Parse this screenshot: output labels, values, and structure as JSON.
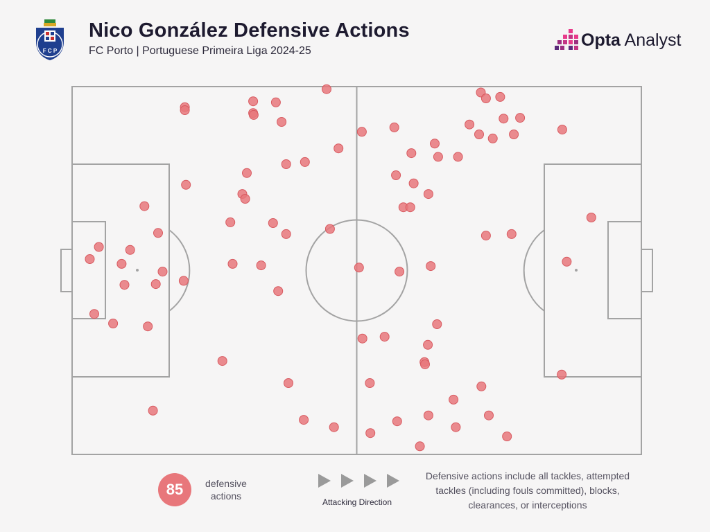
{
  "header": {
    "title": "Nico González Defensive Actions",
    "subtitle": "FC Porto | Portuguese Primeira Liga 2024-25",
    "crest_letters": "F C P"
  },
  "brand": {
    "name_bold": "Opta",
    "name_regular": " Analyst",
    "colors": [
      "#e83a8a",
      "#9b2d7f",
      "#5a2a7a"
    ]
  },
  "chart_data": {
    "type": "scatter",
    "title": "Nico González Defensive Actions",
    "subtitle": "FC Porto | Portuguese Primeira Liga 2024-25",
    "pitch": {
      "length": 100,
      "width": 100,
      "orientation": "attacking left-to-right"
    },
    "marker_color": "#e8777b",
    "points": [
      {
        "x": 44.7,
        "y": 0.7
      },
      {
        "x": 71.8,
        "y": 1.6
      },
      {
        "x": 75.2,
        "y": 2.8
      },
      {
        "x": 72.7,
        "y": 3.2
      },
      {
        "x": 31.8,
        "y": 4.0
      },
      {
        "x": 35.8,
        "y": 4.3
      },
      {
        "x": 19.8,
        "y": 5.6
      },
      {
        "x": 19.8,
        "y": 6.4
      },
      {
        "x": 31.8,
        "y": 7.2
      },
      {
        "x": 31.9,
        "y": 7.7
      },
      {
        "x": 75.8,
        "y": 8.7
      },
      {
        "x": 78.7,
        "y": 8.5
      },
      {
        "x": 36.8,
        "y": 9.6
      },
      {
        "x": 69.8,
        "y": 10.3
      },
      {
        "x": 56.6,
        "y": 11.1
      },
      {
        "x": 50.9,
        "y": 12.3
      },
      {
        "x": 86.1,
        "y": 11.7
      },
      {
        "x": 71.5,
        "y": 13.0
      },
      {
        "x": 77.6,
        "y": 13.0
      },
      {
        "x": 73.9,
        "y": 14.1
      },
      {
        "x": 63.7,
        "y": 15.5
      },
      {
        "x": 46.8,
        "y": 16.8
      },
      {
        "x": 59.6,
        "y": 18.1
      },
      {
        "x": 64.3,
        "y": 19.1
      },
      {
        "x": 67.8,
        "y": 19.1
      },
      {
        "x": 40.9,
        "y": 20.5
      },
      {
        "x": 37.6,
        "y": 21.1
      },
      {
        "x": 30.7,
        "y": 23.5
      },
      {
        "x": 56.9,
        "y": 24.1
      },
      {
        "x": 60.0,
        "y": 26.3
      },
      {
        "x": 20.0,
        "y": 26.7
      },
      {
        "x": 29.9,
        "y": 29.2
      },
      {
        "x": 62.6,
        "y": 29.2
      },
      {
        "x": 30.4,
        "y": 30.5
      },
      {
        "x": 12.7,
        "y": 32.5
      },
      {
        "x": 58.2,
        "y": 32.8
      },
      {
        "x": 59.4,
        "y": 32.8
      },
      {
        "x": 91.2,
        "y": 35.6
      },
      {
        "x": 27.8,
        "y": 36.9
      },
      {
        "x": 35.3,
        "y": 37.1
      },
      {
        "x": 45.3,
        "y": 38.7
      },
      {
        "x": 15.1,
        "y": 39.8
      },
      {
        "x": 37.6,
        "y": 40.1
      },
      {
        "x": 72.7,
        "y": 40.5
      },
      {
        "x": 77.2,
        "y": 40.1
      },
      {
        "x": 4.7,
        "y": 43.6
      },
      {
        "x": 10.2,
        "y": 44.4
      },
      {
        "x": 3.1,
        "y": 46.9
      },
      {
        "x": 8.7,
        "y": 48.2
      },
      {
        "x": 28.2,
        "y": 48.2
      },
      {
        "x": 33.2,
        "y": 48.6
      },
      {
        "x": 50.4,
        "y": 49.2
      },
      {
        "x": 63.0,
        "y": 48.8
      },
      {
        "x": 57.5,
        "y": 50.3
      },
      {
        "x": 15.9,
        "y": 50.3
      },
      {
        "x": 86.9,
        "y": 47.6
      },
      {
        "x": 9.2,
        "y": 53.9
      },
      {
        "x": 14.7,
        "y": 53.7
      },
      {
        "x": 19.6,
        "y": 52.8
      },
      {
        "x": 36.2,
        "y": 55.6
      },
      {
        "x": 3.9,
        "y": 61.8
      },
      {
        "x": 7.2,
        "y": 64.4
      },
      {
        "x": 13.3,
        "y": 65.2
      },
      {
        "x": 64.1,
        "y": 64.6
      },
      {
        "x": 51.0,
        "y": 68.5
      },
      {
        "x": 54.9,
        "y": 68.0
      },
      {
        "x": 62.5,
        "y": 70.2
      },
      {
        "x": 26.4,
        "y": 74.6
      },
      {
        "x": 61.9,
        "y": 74.9
      },
      {
        "x": 62.0,
        "y": 75.5
      },
      {
        "x": 86.0,
        "y": 78.3
      },
      {
        "x": 38.0,
        "y": 80.6
      },
      {
        "x": 52.3,
        "y": 80.6
      },
      {
        "x": 71.9,
        "y": 81.5
      },
      {
        "x": 67.0,
        "y": 85.1
      },
      {
        "x": 14.2,
        "y": 88.1
      },
      {
        "x": 62.6,
        "y": 89.4
      },
      {
        "x": 73.2,
        "y": 89.4
      },
      {
        "x": 40.7,
        "y": 90.6
      },
      {
        "x": 57.1,
        "y": 91.0
      },
      {
        "x": 46.0,
        "y": 92.6
      },
      {
        "x": 67.4,
        "y": 92.6
      },
      {
        "x": 52.4,
        "y": 94.2
      },
      {
        "x": 76.4,
        "y": 95.1
      },
      {
        "x": 61.1,
        "y": 97.8
      }
    ]
  },
  "footer": {
    "count": "85",
    "count_label": "defensive actions",
    "direction_label": "Attacking Direction",
    "note": "Defensive actions include all tackles, attempted tackles (including fouls committed), blocks, clearances, or interceptions"
  }
}
